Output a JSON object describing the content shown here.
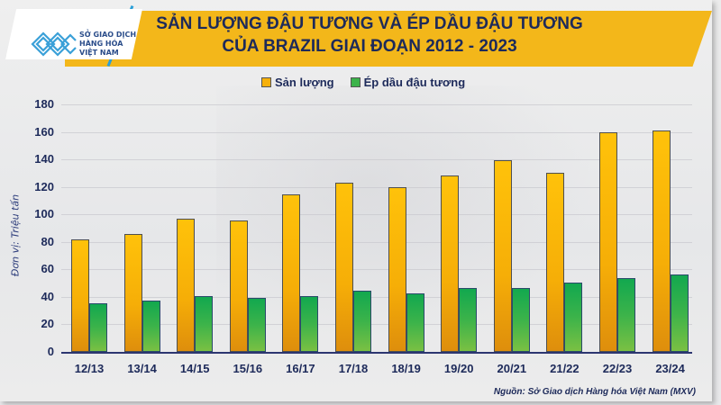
{
  "logo": {
    "lines": [
      "SỞ GIAO DỊCH",
      "HÀNG HÓA",
      "VIỆT NAM"
    ]
  },
  "title": {
    "line1": "SẢN LƯỢNG ĐẬU TƯƠNG VÀ ÉP DẦU ĐẬU TƯƠNG",
    "line2": "CỦA BRAZIL GIAI ĐOẠN 2012 - 2023"
  },
  "legend": [
    {
      "label": "Sản lượng",
      "color": "#f6b00a"
    },
    {
      "label": "Ép dầu đậu tương",
      "color": "#3cb34a"
    }
  ],
  "axis": {
    "ylabel": "Đơn vị: Triệu tấn",
    "yticks": [
      "0",
      "20",
      "40",
      "60",
      "80",
      "100",
      "120",
      "140",
      "160",
      "180"
    ]
  },
  "source": "Nguồn: Sở Giao dịch Hàng hóa Việt Nam (MXV)",
  "colors": {
    "banner": "#f3b71a",
    "title_text": "#1d2a5a",
    "production": "#f6b00a",
    "crushing": "#3cb34a",
    "axis": "#2c3570"
  },
  "chart_data": {
    "type": "bar",
    "title": "SẢN LƯỢNG ĐẬU TƯƠNG VÀ ÉP DẦU ĐẬU TƯƠNG CỦA BRAZIL GIAI ĐOẠN 2012 - 2023",
    "xlabel": "",
    "ylabel": "Đơn vị: Triệu tấn",
    "ylim": [
      0,
      180
    ],
    "yticks": [
      0,
      20,
      40,
      60,
      80,
      100,
      120,
      140,
      160,
      180
    ],
    "grid": true,
    "legend_position": "top",
    "categories": [
      "12/13",
      "13/14",
      "14/15",
      "15/16",
      "16/17",
      "17/18",
      "18/19",
      "19/20",
      "20/21",
      "21/22",
      "22/23",
      "23/24"
    ],
    "series": [
      {
        "name": "Sản lượng",
        "values": [
          81.5,
          86,
          97,
          95.5,
          114.5,
          123,
          120,
          128.5,
          139.5,
          130.5,
          160,
          161
        ]
      },
      {
        "name": "Ép dầu đậu tương",
        "values": [
          35.5,
          37,
          40.5,
          39.5,
          40.5,
          44.5,
          42.5,
          46.5,
          46.5,
          50.5,
          53.5,
          56
        ]
      }
    ],
    "source": "Nguồn: Sở Giao dịch Hàng hóa Việt Nam (MXV)"
  }
}
